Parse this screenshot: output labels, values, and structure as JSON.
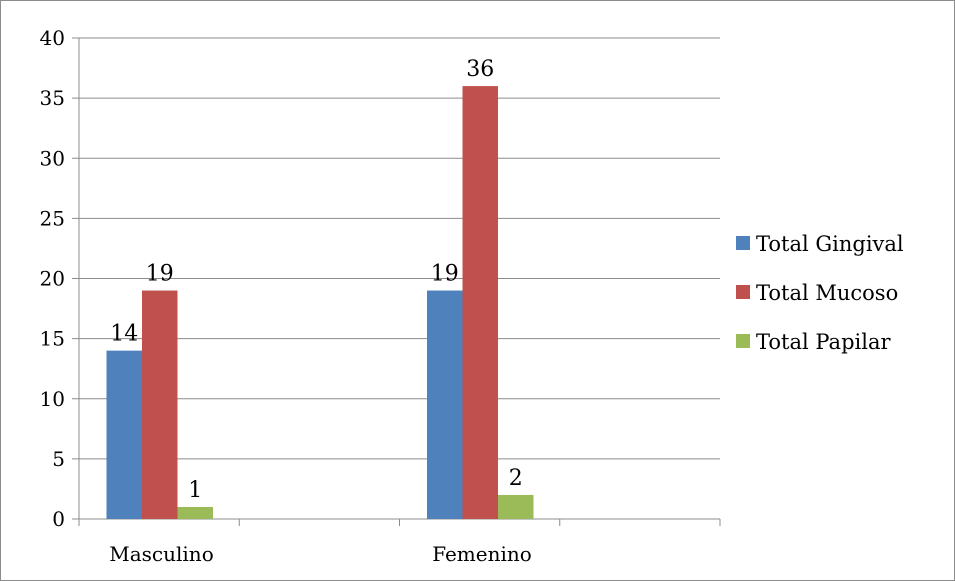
{
  "chart_data": {
    "type": "bar",
    "title": "",
    "xlabel": "",
    "ylabel": "",
    "categories": [
      "Masculino",
      "Femenino"
    ],
    "ylim": [
      0,
      40
    ],
    "yticks": [
      0,
      5,
      10,
      15,
      20,
      25,
      30,
      35,
      40
    ],
    "grid": true,
    "legend_position": "right",
    "series": [
      {
        "name": "Total Gingival",
        "color": "#4f81bd",
        "values": [
          14,
          19
        ]
      },
      {
        "name": "Total Mucoso",
        "color": "#c0504d",
        "values": [
          19,
          36
        ]
      },
      {
        "name": "Total Papilar",
        "color": "#9bbb59",
        "values": [
          1,
          2
        ]
      }
    ]
  }
}
